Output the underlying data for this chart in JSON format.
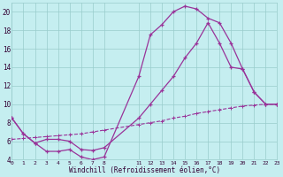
{
  "bg_color": "#c5eef0",
  "line_color": "#993399",
  "grid_color": "#99cccc",
  "xlim": [
    0,
    23
  ],
  "ylim": [
    4,
    21
  ],
  "yticks": [
    4,
    6,
    8,
    10,
    12,
    14,
    16,
    18,
    20
  ],
  "xticks": [
    0,
    1,
    2,
    3,
    4,
    5,
    6,
    7,
    8,
    11,
    12,
    13,
    14,
    15,
    16,
    17,
    18,
    19,
    20,
    21,
    22,
    23
  ],
  "line1_x": [
    0,
    1,
    2,
    3,
    4,
    5,
    6,
    7,
    8,
    11,
    12,
    13,
    14,
    15,
    16,
    17,
    18,
    19,
    20,
    21,
    22,
    23
  ],
  "line1_y": [
    8.5,
    6.8,
    5.8,
    4.9,
    4.9,
    5.1,
    4.3,
    4.0,
    4.3,
    13.0,
    17.5,
    18.6,
    20.0,
    20.6,
    20.3,
    19.3,
    18.8,
    16.6,
    13.8,
    11.3,
    10.0,
    10.0
  ],
  "line2_x": [
    0,
    1,
    2,
    3,
    4,
    5,
    6,
    7,
    8,
    11,
    12,
    13,
    14,
    15,
    16,
    17,
    18,
    19,
    20,
    21,
    22,
    23
  ],
  "line2_y": [
    8.5,
    6.8,
    5.8,
    6.2,
    6.2,
    6.0,
    5.1,
    5.0,
    5.3,
    8.5,
    10.0,
    11.5,
    13.0,
    15.0,
    16.6,
    18.8,
    16.6,
    14.0,
    13.8,
    11.3,
    10.0,
    10.0
  ],
  "line3_x": [
    0,
    1,
    2,
    3,
    4,
    5,
    6,
    7,
    8,
    11,
    12,
    13,
    14,
    15,
    16,
    17,
    18,
    19,
    20,
    21,
    22,
    23
  ],
  "line3_y": [
    6.2,
    6.3,
    6.4,
    6.5,
    6.6,
    6.7,
    6.8,
    7.0,
    7.2,
    7.8,
    8.0,
    8.2,
    8.5,
    8.7,
    9.0,
    9.2,
    9.4,
    9.6,
    9.8,
    9.9,
    10.0,
    10.0
  ],
  "xlabel": "Windchill (Refroidissement éolien,°C)"
}
